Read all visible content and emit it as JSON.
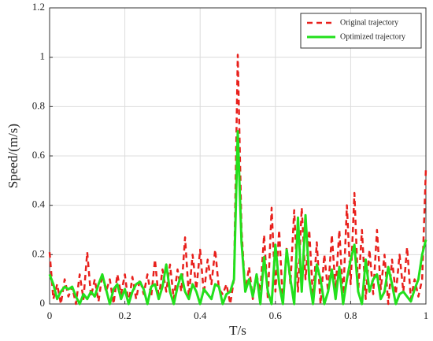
{
  "chart_data": {
    "type": "line",
    "xlabel": "T/s",
    "ylabel": "Speed/(m/s)",
    "x": [
      0,
      0.01,
      0.02,
      0.03,
      0.04,
      0.05,
      0.06,
      0.07,
      0.08,
      0.09,
      0.1,
      0.11,
      0.12,
      0.13,
      0.14,
      0.15,
      0.16,
      0.17,
      0.18,
      0.19,
      0.2,
      0.21,
      0.22,
      0.23,
      0.24,
      0.25,
      0.26,
      0.27,
      0.28,
      0.29,
      0.3,
      0.31,
      0.32,
      0.33,
      0.34,
      0.35,
      0.36,
      0.37,
      0.38,
      0.39,
      0.4,
      0.41,
      0.42,
      0.43,
      0.44,
      0.45,
      0.46,
      0.47,
      0.48,
      0.49,
      0.5,
      0.51,
      0.52,
      0.53,
      0.54,
      0.55,
      0.56,
      0.57,
      0.58,
      0.59,
      0.6,
      0.61,
      0.62,
      0.63,
      0.64,
      0.65,
      0.66,
      0.67,
      0.68,
      0.69,
      0.7,
      0.71,
      0.72,
      0.73,
      0.74,
      0.75,
      0.76,
      0.77,
      0.78,
      0.79,
      0.8,
      0.81,
      0.82,
      0.83,
      0.84,
      0.85,
      0.86,
      0.87,
      0.88,
      0.89,
      0.9,
      0.91,
      0.92,
      0.93,
      0.94,
      0.95,
      0.96,
      0.97,
      0.98,
      0.99,
      1
    ],
    "series": [
      {
        "name": "Original trajectory",
        "color": "#e8201c",
        "dash": true,
        "values": [
          0.21,
          0.02,
          0.08,
          0,
          0.1,
          0.03,
          0.07,
          0,
          0.12,
          0.02,
          0.21,
          0.03,
          0.1,
          0.01,
          0.12,
          0.05,
          0.1,
          0,
          0.12,
          0.04,
          0.12,
          0,
          0.11,
          0.02,
          0.1,
          0.04,
          0.12,
          0.03,
          0.18,
          0.02,
          0.14,
          0.05,
          0.16,
          0.02,
          0.14,
          0.05,
          0.27,
          0.03,
          0.2,
          0.06,
          0.22,
          0.04,
          0.18,
          0.08,
          0.22,
          0.06,
          0.04,
          0.08,
          0,
          0.1,
          1.01,
          0.3,
          0.05,
          0.15,
          0.02,
          0.12,
          0.05,
          0.28,
          0.02,
          0.39,
          0.05,
          0.3,
          0,
          0.23,
          0.08,
          0.38,
          0.05,
          0.39,
          0.1,
          0.3,
          0.02,
          0.25,
          0,
          0.2,
          0.05,
          0.28,
          0.06,
          0.3,
          0.02,
          0.4,
          0.08,
          0.45,
          0.05,
          0.3,
          0.02,
          0.22,
          0.04,
          0.3,
          0.06,
          0.2,
          0,
          0.18,
          0.04,
          0.2,
          0.05,
          0.23,
          0.02,
          0.1,
          0.03,
          0.1,
          0.55
        ]
      },
      {
        "name": "Optimized trajectory",
        "color": "#22e01c",
        "dash": false,
        "values": [
          0.12,
          0.08,
          0.02,
          0.05,
          0.07,
          0.06,
          0.07,
          0.03,
          0,
          0.04,
          0.02,
          0.05,
          0.03,
          0.08,
          0.12,
          0.06,
          0,
          0.06,
          0.08,
          0.02,
          0.06,
          0,
          0.05,
          0.08,
          0.09,
          0.06,
          0,
          0.07,
          0.08,
          0.02,
          0.07,
          0.16,
          0.05,
          0,
          0.07,
          0.12,
          0.05,
          0.02,
          0.08,
          0.05,
          0,
          0.06,
          0.04,
          0.02,
          0.08,
          0.07,
          0,
          0.04,
          0.05,
          0.1,
          0.7,
          0.25,
          0.05,
          0.1,
          0.03,
          0.12,
          0,
          0.19,
          0.05,
          0,
          0.24,
          0.08,
          0,
          0.22,
          0.1,
          0,
          0.35,
          0.05,
          0.36,
          0.1,
          0,
          0.16,
          0.1,
          0,
          0.05,
          0.14,
          0.02,
          0.15,
          0,
          0.1,
          0.18,
          0.24,
          0.05,
          0,
          0.18,
          0.05,
          0.1,
          0.12,
          0.02,
          0.05,
          0.15,
          0.08,
          0,
          0.04,
          0.05,
          0.03,
          0.01,
          0.06,
          0.1,
          0.2,
          0.26
        ]
      }
    ],
    "xlim": [
      0,
      1
    ],
    "xticks": [
      0,
      0.2,
      0.4,
      0.6,
      0.8,
      1
    ],
    "ylim": [
      0,
      1.2
    ],
    "yticks": [
      0,
      0.2,
      0.4,
      0.6,
      0.8,
      1,
      1.2
    ],
    "grid": true,
    "legend": "upper right"
  }
}
